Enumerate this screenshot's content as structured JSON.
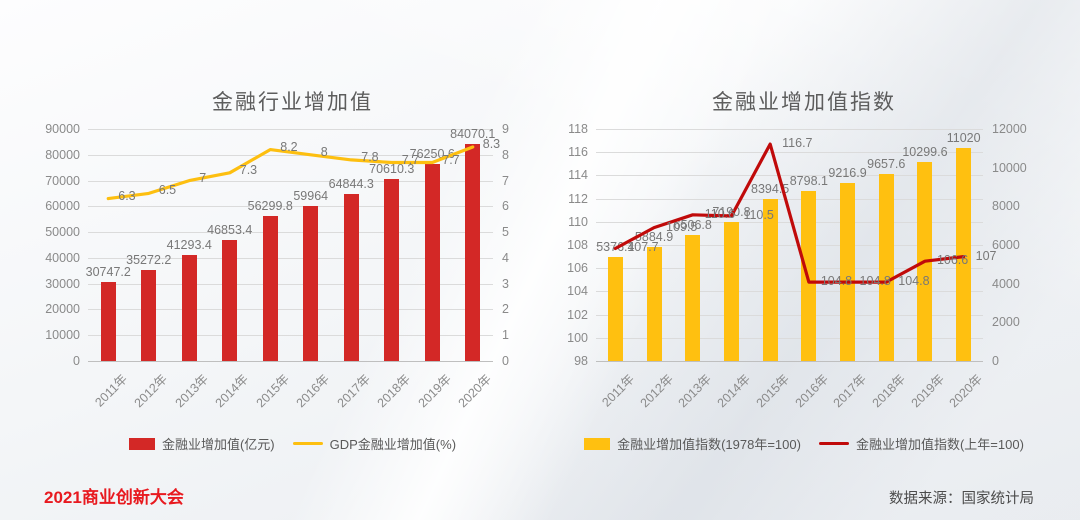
{
  "page": {
    "footer_left": "2021商业创新大会",
    "footer_right": "数据来源：国家统计局"
  },
  "colors": {
    "red_bar": "#d32826",
    "yellow_line": "#fdbf10",
    "gold_bar": "#ffc010",
    "dark_red_line": "#c00a0a",
    "footer_red": "#e8191f"
  },
  "chart_data": [
    {
      "type": "bar+line",
      "title": "金融行业增加值",
      "categories": [
        "2011年",
        "2012年",
        "2013年",
        "2014年",
        "2015年",
        "2016年",
        "2017年",
        "2018年",
        "2019年",
        "2020年"
      ],
      "grid": true,
      "legend_position": "bottom",
      "axes": {
        "left": {
          "min": 0,
          "max": 90000,
          "ticks": [
            "0",
            "10000",
            "20000",
            "30000",
            "40000",
            "50000",
            "60000",
            "70000",
            "80000",
            "90000"
          ]
        },
        "right": {
          "min": 0,
          "max": 9,
          "ticks": [
            "0",
            "1",
            "2",
            "3",
            "4",
            "5",
            "6",
            "7",
            "8",
            "9"
          ]
        }
      },
      "series": [
        {
          "name": "金融业增加值(亿元)",
          "type": "bar",
          "axis": "left",
          "color": "#d32826",
          "values": [
            30747.2,
            35272.2,
            41293.4,
            46853.4,
            56299.8,
            59964,
            64844.3,
            70610.3,
            76250.6,
            84070.1
          ],
          "labels": [
            "30747.2",
            "35272.2",
            "41293.4",
            "46853.4",
            "56299.8",
            "59964",
            "64844.3",
            "70610.3",
            "76250.6",
            "84070.1"
          ]
        },
        {
          "name": "GDP金融业增加值(%)",
          "type": "line",
          "axis": "right",
          "color": "#fdbf10",
          "values": [
            6.3,
            6.5,
            7,
            7.3,
            8.2,
            8,
            7.8,
            7.7,
            7.7,
            8.3
          ],
          "labels": [
            "6.3",
            "6.5",
            "7",
            "7.3",
            "8.2",
            "8",
            "7.8",
            "7.7",
            "7.7",
            "8.3"
          ]
        }
      ]
    },
    {
      "type": "bar+line",
      "title": "金融业增加值指数",
      "categories": [
        "2011年",
        "2012年",
        "2013年",
        "2014年",
        "2015年",
        "2016年",
        "2017年",
        "2018年",
        "2019年",
        "2020年"
      ],
      "grid": true,
      "legend_position": "bottom",
      "axes": {
        "left": {
          "min": 98,
          "max": 118,
          "ticks": [
            "98",
            "100",
            "102",
            "104",
            "106",
            "108",
            "110",
            "112",
            "114",
            "116",
            "118"
          ]
        },
        "right": {
          "min": 0,
          "max": 12000,
          "ticks": [
            "0",
            "2000",
            "4000",
            "6000",
            "8000",
            "10000",
            "12000"
          ]
        }
      },
      "series": [
        {
          "name": "金融业增加值指数(1978年=100)",
          "type": "bar",
          "axis": "right",
          "color": "#ffc010",
          "values": [
            5376.4,
            5884.9,
            6506.8,
            7190.8,
            8394.5,
            8798.1,
            9216.9,
            9657.6,
            10299.6,
            11020
          ],
          "labels": [
            "5376.4",
            "5884.9",
            "6506.8",
            "7190.8",
            "8394.5",
            "8798.1",
            "9216.9",
            "9657.6",
            "10299.6",
            "11020"
          ]
        },
        {
          "name": "金融业增加值指数(上年=100)",
          "type": "line",
          "axis": "left",
          "color": "#c00a0a",
          "values": [
            107.7,
            109.5,
            110.6,
            110.5,
            116.7,
            104.8,
            104.8,
            104.8,
            106.6,
            107
          ],
          "labels": [
            "107.7",
            "109.5",
            "110.6",
            "110.5",
            "116.7",
            "104.8",
            "104.8",
            "104.8",
            "106.6",
            "107"
          ]
        }
      ]
    }
  ]
}
